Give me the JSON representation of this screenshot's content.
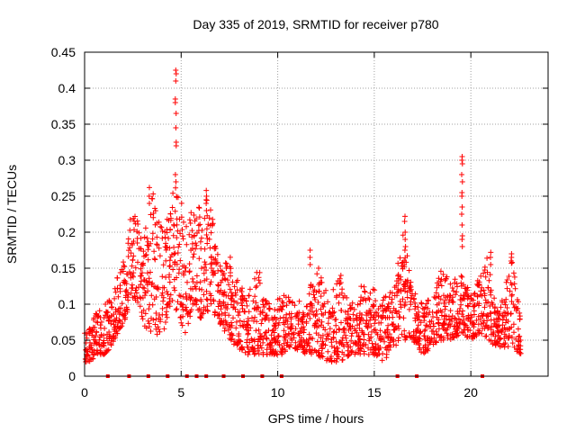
{
  "chart_data": {
    "type": "scatter",
    "title": "Day 335 of 2019, SRMTID for receiver p780",
    "xlabel": "GPS time / hours",
    "ylabel": "SRMTID / TECUs",
    "xlim": [
      0,
      24
    ],
    "ylim": [
      0,
      0.45
    ],
    "xticks": [
      0,
      5,
      10,
      15,
      20
    ],
    "yticks": [
      0,
      0.05,
      0.1,
      0.15,
      0.2,
      0.25,
      0.3,
      0.35,
      0.4,
      0.45
    ],
    "ytick_labels": [
      "0",
      "0.05",
      "0.1",
      "0.15",
      "0.2",
      "0.25",
      "0.3",
      "0.35",
      "0.4",
      "0.45"
    ],
    "grid": true,
    "marker": "plus",
    "color": "#ff0000",
    "series": [
      {
        "name": "SRMTID",
        "envelope": [
          [
            0.0,
            0.02,
            0.06
          ],
          [
            0.3,
            0.02,
            0.07
          ],
          [
            0.6,
            0.03,
            0.09
          ],
          [
            1.0,
            0.03,
            0.1
          ],
          [
            1.4,
            0.04,
            0.11
          ],
          [
            1.8,
            0.06,
            0.15
          ],
          [
            2.1,
            0.08,
            0.17
          ],
          [
            2.4,
            0.1,
            0.23
          ],
          [
            2.8,
            0.1,
            0.22
          ],
          [
            3.1,
            0.07,
            0.2
          ],
          [
            3.5,
            0.05,
            0.26
          ],
          [
            3.9,
            0.06,
            0.23
          ],
          [
            4.3,
            0.07,
            0.22
          ],
          [
            4.6,
            0.1,
            0.27
          ],
          [
            4.9,
            0.08,
            0.27
          ],
          [
            5.2,
            0.05,
            0.22
          ],
          [
            5.6,
            0.1,
            0.23
          ],
          [
            6.0,
            0.08,
            0.24
          ],
          [
            6.4,
            0.09,
            0.25
          ],
          [
            6.8,
            0.08,
            0.2
          ],
          [
            7.1,
            0.07,
            0.16
          ],
          [
            7.5,
            0.05,
            0.17
          ],
          [
            7.9,
            0.04,
            0.14
          ],
          [
            8.4,
            0.03,
            0.11
          ],
          [
            9.0,
            0.03,
            0.15
          ],
          [
            9.6,
            0.03,
            0.1
          ],
          [
            10.2,
            0.03,
            0.12
          ],
          [
            10.8,
            0.04,
            0.11
          ],
          [
            11.4,
            0.03,
            0.1
          ],
          [
            12.0,
            0.03,
            0.16
          ],
          [
            12.6,
            0.02,
            0.11
          ],
          [
            13.2,
            0.02,
            0.14
          ],
          [
            13.8,
            0.03,
            0.1
          ],
          [
            14.4,
            0.03,
            0.13
          ],
          [
            15.0,
            0.03,
            0.12
          ],
          [
            15.5,
            0.02,
            0.11
          ],
          [
            16.0,
            0.04,
            0.12
          ],
          [
            16.5,
            0.05,
            0.22
          ],
          [
            17.0,
            0.05,
            0.12
          ],
          [
            17.5,
            0.03,
            0.1
          ],
          [
            18.0,
            0.04,
            0.11
          ],
          [
            18.5,
            0.05,
            0.15
          ],
          [
            19.0,
            0.05,
            0.14
          ],
          [
            19.5,
            0.06,
            0.14
          ],
          [
            20.0,
            0.05,
            0.12
          ],
          [
            20.5,
            0.06,
            0.15
          ],
          [
            20.9,
            0.05,
            0.17
          ],
          [
            21.3,
            0.04,
            0.09
          ],
          [
            21.7,
            0.04,
            0.11
          ],
          [
            22.1,
            0.04,
            0.17
          ],
          [
            22.6,
            0.03,
            0.08
          ]
        ],
        "spikes": [
          {
            "x": 4.72,
            "values": [
              0.425,
              0.42,
              0.41,
              0.385,
              0.38,
              0.365,
              0.345,
              0.325,
              0.32,
              0.28,
              0.27
            ]
          },
          {
            "x": 19.55,
            "values": [
              0.305,
              0.3,
              0.295,
              0.28,
              0.27,
              0.255,
              0.25,
              0.235,
              0.225,
              0.21,
              0.195,
              0.19,
              0.18
            ]
          },
          {
            "x": 16.6,
            "values": [
              0.222,
              0.215,
              0.2,
              0.19,
              0.18,
              0.175
            ]
          },
          {
            "x": 6.3,
            "values": [
              0.258,
              0.25,
              0.245,
              0.24,
              0.23
            ]
          },
          {
            "x": 3.35,
            "values": [
              0.262,
              0.25,
              0.24
            ]
          },
          {
            "x": 11.7,
            "values": [
              0.175,
              0.165,
              0.155
            ]
          },
          {
            "x": 21.0,
            "values": [
              0.172,
              0.165,
              0.155
            ]
          },
          {
            "x": 22.1,
            "values": [
              0.17,
              0.165,
              0.16
            ]
          },
          {
            "x": 13.3,
            "values": [
              0.14,
              0.13
            ]
          }
        ],
        "baseline_markers_x": [
          1.2,
          2.3,
          3.3,
          4.3,
          5.3,
          5.8,
          6.3,
          7.2,
          8.2,
          9.2,
          10.2,
          16.2,
          17.2,
          20.6
        ]
      }
    ]
  }
}
